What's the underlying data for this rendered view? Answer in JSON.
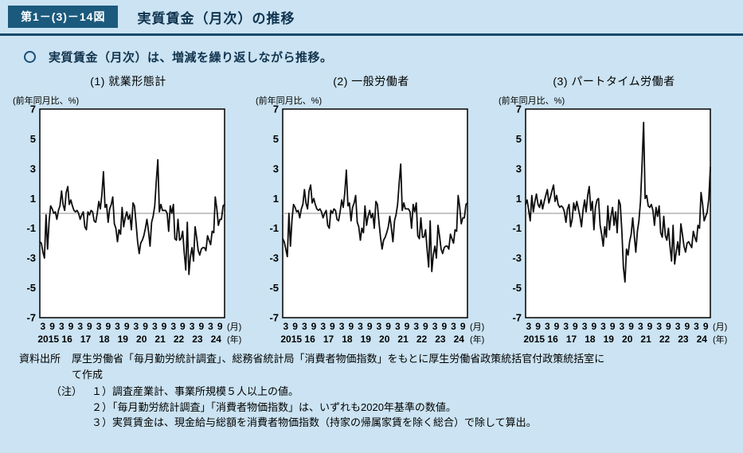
{
  "header": {
    "figure_label": "第1－(3)－14図",
    "title": "実質賃金（月次）の推移"
  },
  "summary": {
    "text": "実質賃金（月次）は、増減を繰り返しながら推移。"
  },
  "colors": {
    "page_bg": "#cbe3f2",
    "header_box": "#1b5a7d",
    "header_line": "#17496d",
    "title_text": "#0f334f",
    "series_line": "#0d0d0d",
    "zero_line": "#8c8c8c",
    "plot_border": "#000000",
    "plot_bg": "#ffffff"
  },
  "chart_data": [
    {
      "type": "line",
      "title": "(1) 就業形態計",
      "ylabel": "(前年同月比、%)",
      "ylim": [
        -7,
        7
      ],
      "yticks": [
        7,
        5,
        3,
        1,
        -1,
        -3,
        -5,
        -7
      ],
      "grid": false,
      "zero_line": true,
      "month_ticks": [
        3,
        9
      ],
      "years": [
        "2015",
        "16",
        "17",
        "18",
        "19",
        "20",
        "21",
        "22",
        "23",
        "24"
      ],
      "x_unit_labels": {
        "month": "(月)",
        "year": "(年)"
      },
      "x_months_start": "2015-01",
      "values": [
        -1.9,
        -2.0,
        -2.6,
        -3.0,
        -0.1,
        -2.4,
        -0.5,
        0.5,
        0.3,
        0.0,
        0.1,
        -0.4,
        0.2,
        0.5,
        1.5,
        0.6,
        0.2,
        1.4,
        1.8,
        0.6,
        0.9,
        0.5,
        0.2,
        0.1,
        0.2,
        0.0,
        -0.4,
        -0.1,
        0.1,
        -0.9,
        -1.1,
        0.1,
        -0.1,
        0.2,
        0.1,
        -0.5,
        -0.6,
        0.0,
        0.8,
        0.3,
        1.3,
        2.8,
        0.4,
        0.6,
        -0.6,
        0.3,
        0.6,
        1.1,
        -0.7,
        -1.0,
        -1.9,
        -1.1,
        -1.4,
        0.4,
        -0.9,
        -0.3,
        0.1,
        -0.4,
        -0.1,
        -1.1,
        0.7,
        0.5,
        -0.7,
        -1.9,
        -2.7,
        -2.0,
        -1.8,
        -1.5,
        -1.0,
        -0.4,
        -1.2,
        -2.2,
        -0.6,
        -0.2,
        0.5,
        2.1,
        3.6,
        0.1,
        0.6,
        0.2,
        0.2,
        0.2,
        0.0,
        -1.2,
        0.5,
        0.0,
        0.6,
        -1.7,
        -1.8,
        -0.4,
        -1.8,
        -1.7,
        -1.2,
        -2.6,
        -3.8,
        -0.6,
        -4.1,
        -2.9,
        -2.3,
        -3.2,
        -0.9,
        -1.6,
        -2.5,
        -2.8,
        -2.4,
        -2.3,
        -2.3,
        -2.5,
        -1.5,
        -1.8,
        -2.1,
        -1.2,
        -1.3,
        1.1,
        0.3,
        -0.8,
        -0.4,
        -0.4,
        0.5,
        0.6
      ]
    },
    {
      "type": "line",
      "title": "(2) 一般労働者",
      "ylabel": "(前年同月比、%)",
      "ylim": [
        -7,
        7
      ],
      "yticks": [
        7,
        5,
        3,
        1,
        -1,
        -3,
        -5,
        -7
      ],
      "grid": false,
      "zero_line": true,
      "month_ticks": [
        3,
        9
      ],
      "years": [
        "2015",
        "16",
        "17",
        "18",
        "19",
        "20",
        "21",
        "22",
        "23",
        "24"
      ],
      "x_unit_labels": {
        "month": "(月)",
        "year": "(年)"
      },
      "x_months_start": "2015-01",
      "values": [
        -1.7,
        -1.9,
        -2.4,
        -2.9,
        0.0,
        -2.2,
        -0.4,
        0.6,
        0.4,
        0.1,
        0.2,
        -0.3,
        0.3,
        0.6,
        1.6,
        0.7,
        0.3,
        1.5,
        1.9,
        0.7,
        1.0,
        0.6,
        0.3,
        0.2,
        0.3,
        0.1,
        -0.3,
        0.0,
        0.2,
        -0.8,
        -1.0,
        0.2,
        0.0,
        0.3,
        0.2,
        -0.4,
        -0.5,
        0.1,
        0.9,
        0.4,
        1.4,
        2.9,
        0.5,
        0.7,
        -0.5,
        0.4,
        0.7,
        1.2,
        -0.6,
        -0.9,
        -1.8,
        -1.0,
        -1.3,
        0.5,
        -0.8,
        -0.2,
        0.2,
        -0.3,
        0.0,
        -1.0,
        0.8,
        0.6,
        -0.6,
        -1.6,
        -2.4,
        -1.8,
        -1.6,
        -1.3,
        -0.9,
        -0.2,
        -1.0,
        -1.9,
        -0.5,
        -0.1,
        0.6,
        2.0,
        3.3,
        0.2,
        0.7,
        0.3,
        0.3,
        0.3,
        0.1,
        -1.0,
        0.6,
        0.1,
        0.7,
        -1.5,
        -1.7,
        -0.3,
        -1.6,
        -1.6,
        -1.1,
        -2.4,
        -3.6,
        -0.5,
        -3.9,
        -2.8,
        -2.2,
        -3.0,
        -0.8,
        -1.5,
        -2.4,
        -2.7,
        -2.3,
        -2.2,
        -2.2,
        -2.4,
        -1.4,
        -1.7,
        -2.0,
        -1.1,
        -1.2,
        1.2,
        0.4,
        -0.7,
        -0.3,
        -0.3,
        0.6,
        0.7
      ]
    },
    {
      "type": "line",
      "title": "(3) パートタイム労働者",
      "ylabel": "(前年同月比、%)",
      "ylim": [
        -7,
        7
      ],
      "yticks": [
        7,
        5,
        3,
        1,
        -1,
        -3,
        -5,
        -7
      ],
      "grid": false,
      "zero_line": true,
      "month_ticks": [
        3,
        9
      ],
      "years": [
        "2015",
        "16",
        "17",
        "18",
        "19",
        "20",
        "21",
        "22",
        "23",
        "24"
      ],
      "x_unit_labels": {
        "month": "(月)",
        "year": "(年)"
      },
      "x_months_start": "2015-01",
      "values": [
        0.6,
        0.9,
        0.2,
        -0.5,
        1.2,
        0.1,
        0.8,
        1.3,
        0.6,
        0.4,
        0.9,
        0.3,
        0.8,
        1.2,
        1.6,
        0.7,
        1.1,
        1.5,
        1.9,
        0.8,
        1.2,
        0.6,
        0.4,
        0.5,
        0.4,
        0.1,
        -0.6,
        0.3,
        0.6,
        -0.9,
        -0.4,
        0.7,
        0.2,
        0.8,
        0.3,
        -0.2,
        -0.9,
        0.2,
        0.9,
        0.1,
        1.2,
        1.8,
        0.2,
        0.8,
        -1.1,
        0.4,
        0.9,
        1.0,
        -0.8,
        -1.4,
        -2.2,
        -0.9,
        -1.6,
        0.5,
        -1.1,
        -0.2,
        0.4,
        -0.8,
        0.1,
        -1.3,
        0.9,
        0.6,
        -1.2,
        -3.6,
        -4.6,
        -2.4,
        -2.8,
        -1.9,
        -1.4,
        -0.3,
        -1.5,
        -2.6,
        -1.2,
        -0.5,
        0.8,
        3.2,
        6.1,
        1.0,
        1.2,
        0.5,
        0.4,
        0.6,
        0.2,
        -0.8,
        0.4,
        -0.2,
        0.5,
        -1.3,
        -1.6,
        -0.2,
        -1.5,
        -1.8,
        -1.0,
        -2.2,
        -3.2,
        -0.8,
        -3.4,
        -2.6,
        -1.9,
        -2.8,
        -0.7,
        -1.4,
        -2.2,
        -2.6,
        -2.0,
        -1.9,
        -2.1,
        -2.3,
        -1.2,
        -1.6,
        -1.9,
        -0.8,
        -1.0,
        1.4,
        0.6,
        -0.5,
        -0.2,
        0.1,
        1.0,
        3.1
      ]
    }
  ],
  "footer": {
    "source_label": "資料出所",
    "source_text": "厚生労働省「毎月勤労統計調査」、総務省統計局「消費者物価指数」をもとに厚生労働省政策統括官付政策統括室にて作成",
    "note_label": "（注）",
    "notes": [
      "１）調査産業計、事業所規模５人以上の値。",
      "２）「毎月勤労統計調査」「消費者物価指数」は、いずれも2020年基準の数値。",
      "３）実質賃金は、現金給与総額を消費者物価指数（持家の帰属家賃を除く総合）で除して算出。"
    ]
  }
}
